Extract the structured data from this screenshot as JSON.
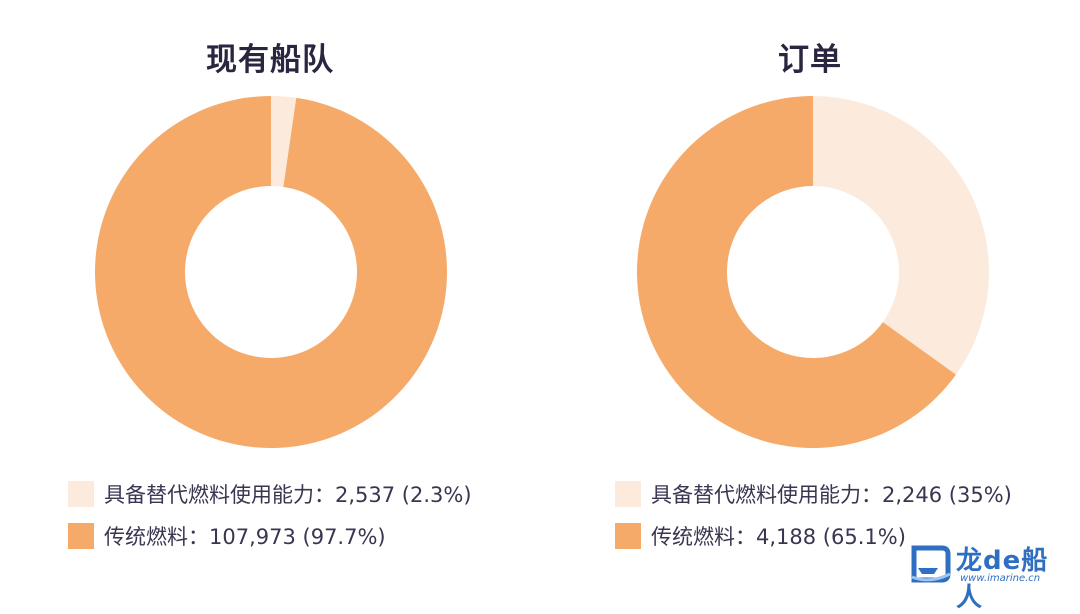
{
  "colors": {
    "alternative": "#fcebdc",
    "conventional": "#f5aa6a",
    "title": "#2b2540",
    "watermark": "#2e6fc2"
  },
  "chart_data": [
    {
      "type": "pie",
      "donut": true,
      "title": "现有船队",
      "slices": [
        {
          "label": "具备替代燃料使用能力",
          "value": 2537,
          "percent": 2.3
        },
        {
          "label": "传统燃料",
          "value": 107973,
          "percent": 97.7
        }
      ],
      "legend_position": "bottom",
      "legend": [
        "具备替代燃料使用能力：2,537 (2.3%)",
        "传统燃料：107,973 (97.7%)"
      ]
    },
    {
      "type": "pie",
      "donut": true,
      "title": "订单",
      "slices": [
        {
          "label": "具备替代燃料使用能力",
          "value": 2246,
          "percent": 35
        },
        {
          "label": "传统燃料",
          "value": 4188,
          "percent": 65.1
        }
      ],
      "legend_position": "bottom",
      "legend": [
        "具备替代燃料使用能力：2,246 (35%)",
        "传统燃料：4,188 (65.1%)"
      ]
    }
  ],
  "watermark": {
    "brand": "龙de船人",
    "url": "www.imarine.cn",
    "icon": "ship-logo-icon"
  }
}
